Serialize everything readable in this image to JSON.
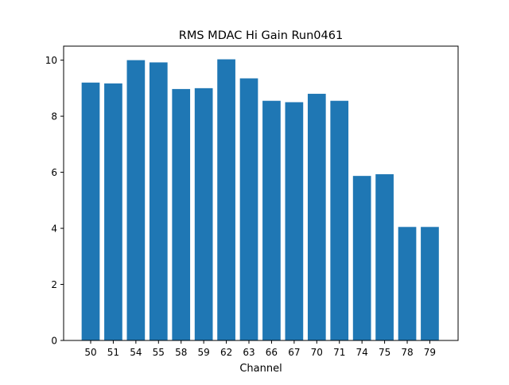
{
  "chart_data": {
    "type": "bar",
    "title": "RMS MDAC Hi Gain Run0461",
    "xlabel": "Channel",
    "ylabel": "",
    "categories": [
      "50",
      "51",
      "54",
      "55",
      "58",
      "59",
      "62",
      "63",
      "66",
      "67",
      "70",
      "71",
      "74",
      "75",
      "78",
      "79"
    ],
    "values": [
      9.2,
      9.17,
      10.0,
      9.92,
      8.97,
      9.0,
      10.03,
      9.35,
      8.55,
      8.5,
      8.8,
      8.55,
      5.87,
      5.93,
      4.05,
      4.05
    ],
    "ylim": [
      0,
      10.5
    ],
    "yticks": [
      0,
      2,
      4,
      6,
      8,
      10
    ],
    "grid": false,
    "bar_color": "#1f77b4"
  }
}
